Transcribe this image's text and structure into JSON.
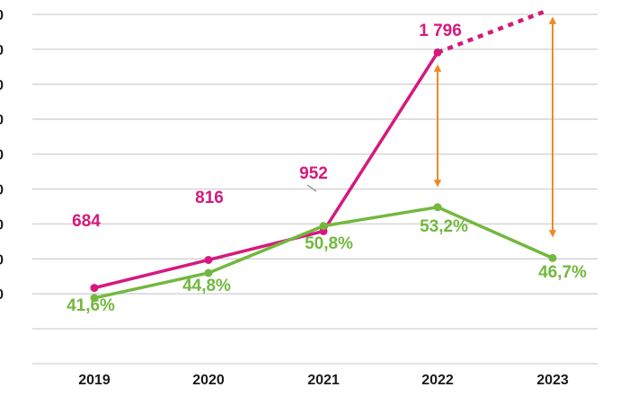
{
  "chart_data": {
    "type": "line",
    "categories": [
      "2019",
      "2020",
      "2021",
      "2022",
      "2023"
    ],
    "colors": {
      "magenta": "#d6197c",
      "green": "#72b83e",
      "orange": "#ef8a24",
      "grid": "#d0d0d0"
    },
    "series": [
      {
        "color": "#d6197c",
        "values": [
          684,
          816,
          952,
          1796,
          null
        ],
        "labels": [
          "684",
          "816",
          "952",
          "1 796",
          ""
        ],
        "projected_value": 2000
      },
      {
        "color": "#72b83e",
        "values": [
          41.6,
          44.8,
          50.8,
          53.2,
          46.7
        ],
        "labels": [
          "41,6%",
          "44,8%",
          "50,8%",
          "53,2%",
          "46,7%"
        ]
      }
    ],
    "gap_arrows": [
      "2022",
      "2023"
    ],
    "grid": true
  }
}
